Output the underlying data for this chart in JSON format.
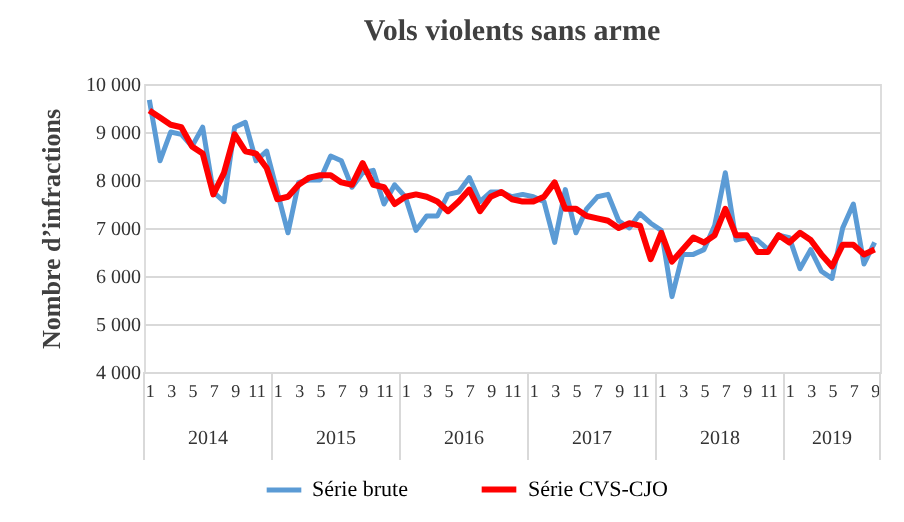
{
  "chart_data": {
    "type": "line",
    "title": "Vols violents sans arme",
    "ylabel": "Nombre d’infractions",
    "categories": [
      "1",
      null,
      "3",
      null,
      "5",
      null,
      "7",
      null,
      "9",
      null,
      "11",
      null,
      "1",
      null,
      "3",
      null,
      "5",
      null,
      "7",
      null,
      "9",
      null,
      "11",
      null,
      "1",
      null,
      "3",
      null,
      "5",
      null,
      "7",
      null,
      "9",
      null,
      "11",
      null,
      "1",
      null,
      "3",
      null,
      "5",
      null,
      "7",
      null,
      "9",
      null,
      "11",
      null,
      "1",
      null,
      "3",
      null,
      "5",
      null,
      "7",
      null,
      "9",
      null,
      "11",
      null,
      "1",
      null,
      "3",
      null,
      "5",
      null,
      "7",
      null,
      "9"
    ],
    "annotations": [
      "2014",
      "2015",
      "2016",
      "2017",
      "2018",
      "2019"
    ],
    "series": [
      {
        "name": "Série brute",
        "color": "#5b9bd5",
        "values": [
          9670,
          8400,
          9000,
          8950,
          8700,
          9100,
          7750,
          7550,
          9100,
          9200,
          8400,
          8600,
          7750,
          6900,
          7950,
          8000,
          8000,
          8500,
          8400,
          7850,
          8150,
          8200,
          7500,
          7900,
          7650,
          6950,
          7250,
          7250,
          7700,
          7750,
          8050,
          7550,
          7750,
          7750,
          7650,
          7700,
          7650,
          7550,
          6700,
          7800,
          6900,
          7400,
          7650,
          7700,
          7150,
          7000,
          7300,
          7100,
          6950,
          5570,
          6450,
          6450,
          6550,
          7050,
          8150,
          6750,
          6800,
          6750,
          6550,
          6850,
          6800,
          6150,
          6550,
          6100,
          5950,
          7000,
          7500,
          6250,
          6700
        ]
      },
      {
        "name": "Série CVS-CJO",
        "color": "#ff0000",
        "values": [
          9450,
          9300,
          9150,
          9100,
          8700,
          8550,
          7700,
          8150,
          8950,
          8600,
          8550,
          8250,
          7600,
          7650,
          7900,
          8050,
          8100,
          8100,
          7950,
          7900,
          8350,
          7900,
          7850,
          7500,
          7650,
          7700,
          7650,
          7550,
          7350,
          7550,
          7800,
          7350,
          7650,
          7750,
          7600,
          7550,
          7550,
          7650,
          7950,
          7400,
          7400,
          7250,
          7200,
          7150,
          7000,
          7100,
          7050,
          6350,
          6900,
          6300,
          6550,
          6800,
          6700,
          6850,
          7400,
          6850,
          6850,
          6500,
          6500,
          6850,
          6700,
          6900,
          6750,
          6450,
          6200,
          6650,
          6650,
          6450,
          6550
        ]
      }
    ],
    "ylim": [
      4000,
      10000
    ],
    "yticks": [
      {
        "value": 4000,
        "label": "4 000"
      },
      {
        "value": 5000,
        "label": "5 000"
      },
      {
        "value": 6000,
        "label": "6 000"
      },
      {
        "value": 7000,
        "label": "7 000"
      },
      {
        "value": 8000,
        "label": "8 000"
      },
      {
        "value": 9000,
        "label": "9 000"
      },
      {
        "value": 10000,
        "label": "10 000"
      }
    ],
    "grid": "y",
    "legend": "bottom",
    "marker": "none",
    "line_style": "solid"
  }
}
